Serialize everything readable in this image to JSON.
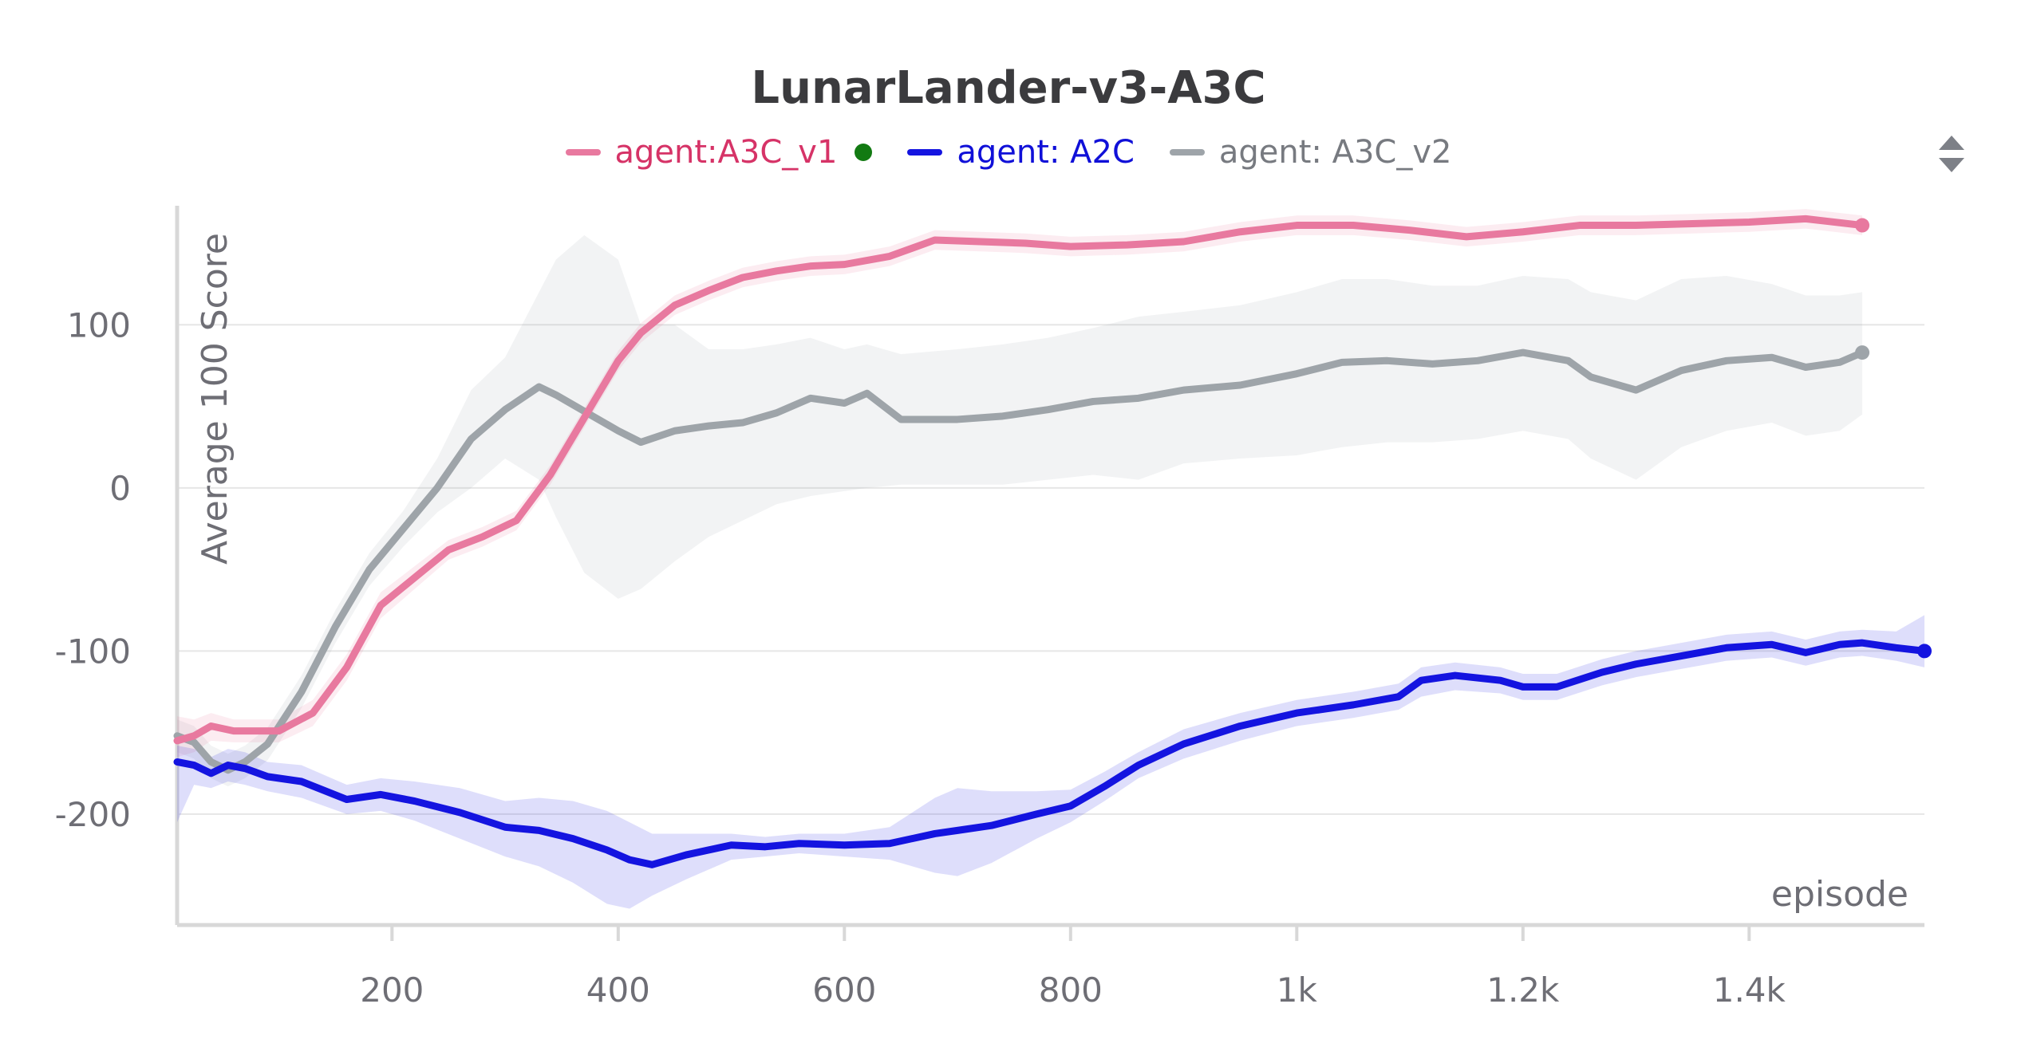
{
  "title": "LunarLander-v3-A3C",
  "colors": {
    "grid": "#e6e6e6",
    "axis": "#d8d8d8",
    "tick_text": "#6e6e75",
    "green_dot": "#127a12"
  },
  "legend": [
    {
      "label": "agent:A3C_v1",
      "color": "#e8799f",
      "text_color": "#d63367",
      "has_dot": true
    },
    {
      "label": "agent: A2C",
      "color": "#1414e0",
      "text_color": "#1010d8",
      "has_dot": false
    },
    {
      "label": "agent: A3C_v2",
      "color": "#9ea4a9",
      "text_color": "#777a80",
      "has_dot": false
    }
  ],
  "chart_data": {
    "type": "line",
    "title": "LunarLander-v3-A3C",
    "xlabel": "episode",
    "ylabel": "Average 100 Score",
    "xlim": [
      10,
      1555
    ],
    "ylim": [
      -268,
      173
    ],
    "x_ticks": [
      200,
      400,
      600,
      800,
      1000,
      1200,
      1400
    ],
    "x_tick_labels": [
      "200",
      "400",
      "600",
      "800",
      "1k",
      "1.2k",
      "1.4k"
    ],
    "y_ticks": [
      -200,
      -100,
      0,
      100
    ],
    "y_tick_labels": [
      "-200",
      "-100",
      "0",
      "100"
    ],
    "grid": true,
    "legend_position": "top-center",
    "series": [
      {
        "name": "agent:A3C_v1",
        "color": "#e8799f",
        "x": [
          10,
          25,
          40,
          60,
          80,
          100,
          130,
          160,
          190,
          220,
          250,
          280,
          310,
          340,
          370,
          400,
          420,
          450,
          480,
          510,
          540,
          570,
          600,
          640,
          680,
          720,
          760,
          800,
          850,
          900,
          950,
          1000,
          1050,
          1100,
          1150,
          1200,
          1250,
          1300,
          1350,
          1400,
          1450,
          1500
        ],
        "y": [
          -155,
          -152,
          -146,
          -149,
          -149,
          -149,
          -138,
          -110,
          -72,
          -55,
          -38,
          -30,
          -20,
          8,
          43,
          78,
          95,
          112,
          121,
          129,
          133,
          136,
          137,
          142,
          152,
          151,
          150,
          148,
          149,
          151,
          157,
          161,
          161,
          158,
          154,
          157,
          161,
          161,
          162,
          163,
          165,
          161
        ],
        "band_low": [
          -165,
          -162,
          -155,
          -156,
          -156,
          -156,
          -146,
          -118,
          -80,
          -62,
          -44,
          -36,
          -26,
          2,
          37,
          72,
          89,
          106,
          115,
          123,
          127,
          130,
          131,
          136,
          146,
          145,
          144,
          142,
          143,
          145,
          151,
          155,
          155,
          152,
          148,
          151,
          155,
          155,
          156,
          157,
          159,
          155
        ],
        "band_high": [
          -140,
          -142,
          -138,
          -142,
          -142,
          -142,
          -130,
          -102,
          -64,
          -48,
          -32,
          -24,
          -14,
          14,
          49,
          84,
          101,
          118,
          127,
          135,
          139,
          142,
          143,
          148,
          158,
          157,
          156,
          154,
          155,
          157,
          163,
          167,
          167,
          164,
          160,
          163,
          167,
          167,
          168,
          169,
          171,
          167
        ]
      },
      {
        "name": "agent: A2C",
        "color": "#1414e0",
        "x": [
          10,
          25,
          40,
          55,
          70,
          90,
          120,
          160,
          190,
          220,
          260,
          300,
          330,
          360,
          390,
          410,
          430,
          460,
          500,
          530,
          560,
          600,
          640,
          680,
          700,
          730,
          770,
          800,
          830,
          860,
          900,
          950,
          1000,
          1050,
          1090,
          1110,
          1140,
          1180,
          1200,
          1230,
          1270,
          1300,
          1340,
          1380,
          1420,
          1450,
          1480,
          1500,
          1530,
          1555
        ],
        "y": [
          -168,
          -170,
          -175,
          -170,
          -172,
          -177,
          -180,
          -191,
          -188,
          -192,
          -199,
          -208,
          -210,
          -215,
          -222,
          -228,
          -231,
          -225,
          -219,
          -220,
          -218,
          -219,
          -218,
          -212,
          -210,
          -207,
          -200,
          -195,
          -183,
          -170,
          -157,
          -146,
          -138,
          -133,
          -128,
          -118,
          -115,
          -118,
          -122,
          -122,
          -113,
          -108,
          -103,
          -98,
          -96,
          -101,
          -96,
          -95,
          -98,
          -100
        ],
        "band_low": [
          -205,
          -182,
          -184,
          -180,
          -182,
          -186,
          -190,
          -200,
          -198,
          -204,
          -215,
          -226,
          -232,
          -242,
          -255,
          -258,
          -250,
          -240,
          -228,
          -226,
          -224,
          -226,
          -228,
          -236,
          -238,
          -230,
          -215,
          -205,
          -192,
          -178,
          -166,
          -155,
          -146,
          -141,
          -136,
          -128,
          -124,
          -126,
          -130,
          -130,
          -121,
          -116,
          -111,
          -106,
          -104,
          -109,
          -104,
          -103,
          -106,
          -110
        ],
        "band_high": [
          -158,
          -160,
          -165,
          -160,
          -162,
          -168,
          -170,
          -182,
          -178,
          -180,
          -184,
          -192,
          -190,
          -192,
          -198,
          -205,
          -212,
          -212,
          -212,
          -214,
          -212,
          -212,
          -208,
          -190,
          -184,
          -186,
          -186,
          -185,
          -174,
          -162,
          -148,
          -138,
          -130,
          -125,
          -120,
          -110,
          -107,
          -110,
          -114,
          -114,
          -105,
          -100,
          -95,
          -90,
          -88,
          -93,
          -88,
          -87,
          -88,
          -78
        ]
      },
      {
        "name": "agent: A3C_v2",
        "color": "#9ea4a9",
        "x": [
          10,
          25,
          40,
          55,
          70,
          90,
          120,
          150,
          180,
          210,
          240,
          270,
          300,
          330,
          345,
          370,
          400,
          420,
          450,
          480,
          510,
          540,
          570,
          600,
          620,
          650,
          700,
          740,
          780,
          820,
          860,
          900,
          950,
          1000,
          1040,
          1080,
          1120,
          1160,
          1200,
          1240,
          1260,
          1300,
          1340,
          1380,
          1420,
          1450,
          1480,
          1500
        ],
        "y": [
          -152,
          -156,
          -168,
          -173,
          -168,
          -157,
          -125,
          -85,
          -50,
          -25,
          0,
          30,
          48,
          62,
          57,
          47,
          35,
          28,
          35,
          38,
          40,
          46,
          55,
          52,
          58,
          42,
          42,
          44,
          48,
          53,
          55,
          60,
          63,
          70,
          77,
          78,
          76,
          78,
          83,
          78,
          68,
          60,
          72,
          78,
          80,
          74,
          77,
          83
        ],
        "band_low": [
          -162,
          -166,
          -178,
          -183,
          -178,
          -167,
          -135,
          -95,
          -60,
          -36,
          -15,
          0,
          18,
          5,
          -18,
          -52,
          -68,
          -62,
          -45,
          -30,
          -20,
          -10,
          -5,
          -2,
          0,
          2,
          2,
          2,
          5,
          8,
          5,
          15,
          18,
          20,
          25,
          28,
          28,
          30,
          35,
          30,
          18,
          5,
          25,
          35,
          40,
          32,
          35,
          45
        ],
        "band_high": [
          -142,
          -146,
          -158,
          -163,
          -158,
          -147,
          -115,
          -75,
          -40,
          -14,
          18,
          60,
          80,
          120,
          140,
          155,
          140,
          100,
          100,
          85,
          85,
          88,
          92,
          85,
          88,
          82,
          85,
          88,
          92,
          98,
          105,
          108,
          112,
          120,
          128,
          128,
          124,
          124,
          130,
          128,
          120,
          115,
          128,
          130,
          125,
          118,
          118,
          120
        ]
      }
    ]
  }
}
